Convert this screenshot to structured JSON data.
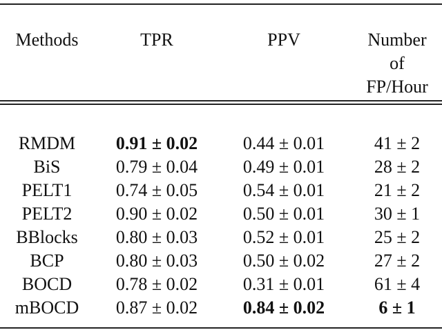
{
  "table": {
    "header": [
      [
        "Methods"
      ],
      [
        "TPR"
      ],
      [
        "PPV"
      ],
      [
        "Number",
        "of",
        "FP/Hour"
      ]
    ],
    "rows": [
      [
        "RMDM",
        "0.91 ± 0.02",
        "0.44 ± 0.01",
        "41 ± 2"
      ],
      [
        "BiS",
        "0.79 ± 0.04",
        "0.49 ± 0.01",
        "28 ± 2"
      ],
      [
        "PELT1",
        "0.74 ± 0.05",
        "0.54 ± 0.01",
        "21 ± 2"
      ],
      [
        "PELT2",
        "0.90 ± 0.02",
        "0.50 ± 0.01",
        "30 ± 1"
      ],
      [
        "BBlocks",
        "0.80 ± 0.03",
        "0.52 ± 0.01",
        "25 ± 2"
      ],
      [
        "BCP",
        "0.80 ± 0.03",
        "0.50 ± 0.02",
        "27 ± 2"
      ],
      [
        "BOCD",
        "0.78 ± 0.02",
        "0.31 ± 0.01",
        "61 ± 4"
      ],
      [
        "mBOCD",
        "0.87 ± 0.02",
        "0.84 ± 0.02",
        "6 ± 1"
      ]
    ],
    "bold": [
      [
        0,
        1
      ],
      [
        7,
        2
      ],
      [
        7,
        3
      ]
    ]
  }
}
